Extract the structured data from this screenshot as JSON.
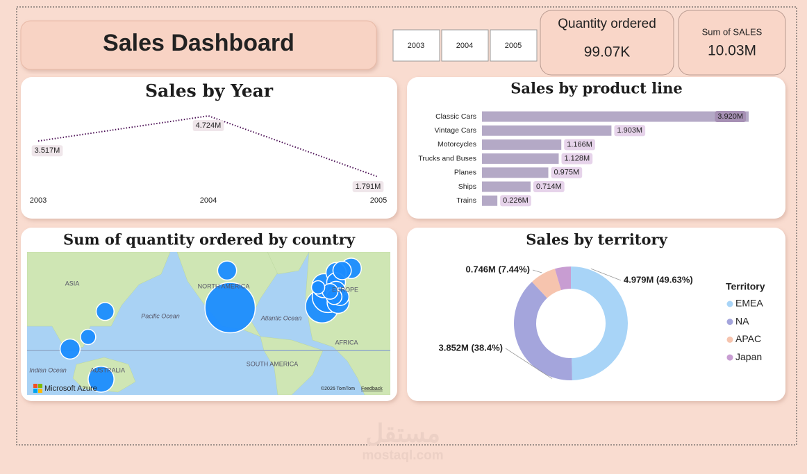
{
  "header": {
    "title": "Sales Dashboard"
  },
  "slicer": {
    "options": [
      "2003",
      "2004",
      "2005"
    ]
  },
  "cards": [
    {
      "label": "Quantity ordered",
      "value": "99.07K"
    },
    {
      "label": "Sum of SALES",
      "value": "10.03M"
    }
  ],
  "chart_data": [
    {
      "type": "line",
      "title": "Sales by Year",
      "categories": [
        "2003",
        "2004",
        "2005"
      ],
      "values": [
        3.517,
        4.724,
        1.791
      ],
      "value_labels": [
        "3.517M",
        "4.724M",
        "1.791M"
      ],
      "color": "#4b0f55"
    },
    {
      "type": "bar",
      "title": "Sales by product line",
      "categories": [
        "Classic Cars",
        "Vintage Cars",
        "Motorcycles",
        "Trucks and Buses",
        "Planes",
        "Ships",
        "Trains"
      ],
      "values": [
        3.92,
        1.903,
        1.166,
        1.128,
        0.975,
        0.714,
        0.226
      ],
      "value_labels": [
        "3.920M",
        "1.903M",
        "1.166M",
        "1.128M",
        "0.975M",
        "0.714M",
        "0.226M"
      ],
      "color": "#b4a9c6"
    },
    {
      "type": "map",
      "title": "Sum of quantity ordered by country",
      "lon": [
        -96,
        -4,
        2,
        135,
        -2,
        12,
        25,
        10,
        104,
        -99,
        10,
        10,
        16,
        14,
        139,
        4,
        8,
        122,
        -8
      ],
      "lat": [
        39,
        40,
        47,
        -28,
        54,
        43,
        63,
        61,
        1,
        62,
        56,
        51,
        62,
        47,
        36,
        50.5,
        47,
        13,
        53
      ],
      "sizes": [
        35659,
        12429,
        11090,
        6246,
        5013,
        3773,
        2961,
        2842,
        2760,
        2293,
        2197,
        2148,
        2006,
        1742,
        1842,
        1074,
        1078,
        961,
        490
      ],
      "color": "#1a8cff",
      "labels": [
        "ASIA",
        "NORTH AMERICA",
        "Pacific Ocean",
        "Atlantic Ocean",
        "EUROPE",
        "AFRICA",
        "SOUTH AMERICA",
        "Indian Ocean",
        "AUSTRALIA"
      ],
      "attribution": [
        "Microsoft Azure",
        "©2026 TomTom",
        "Feedback"
      ]
    },
    {
      "type": "donut",
      "title": "Sales by territory",
      "legend_title": "Territory",
      "categories": [
        "EMEA",
        "NA",
        "APAC",
        "Japan"
      ],
      "values": [
        4.979,
        3.852,
        0.746,
        0.455
      ],
      "value_labels": [
        "4.979M (49.63%)",
        "3.852M (38.4%)",
        "0.746M (7.44%)",
        null
      ],
      "colors": [
        "#a8d4f7",
        "#a4a5dc",
        "#f6c4ae",
        "#c89dd2"
      ]
    }
  ],
  "watermark": {
    "arabic": "مستقل",
    "latin": "mostaql.com"
  }
}
